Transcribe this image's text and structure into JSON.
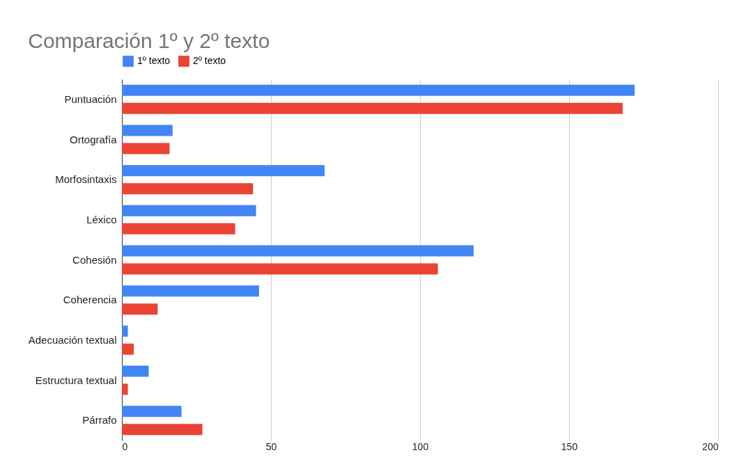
{
  "chart_data": {
    "type": "bar",
    "orientation": "horizontal",
    "title": "Comparación 1º y 2º texto",
    "categories": [
      "Puntuación",
      "Ortografía",
      "Morfosintaxis",
      "Léxico",
      "Cohesión",
      "Coherencia",
      "Adecuación textual",
      "Estructura textual",
      "Párrafo"
    ],
    "series": [
      {
        "name": "1º texto",
        "color": "#4285f4",
        "values": [
          172,
          17,
          68,
          45,
          118,
          46,
          2,
          9,
          20
        ]
      },
      {
        "name": "2º texto",
        "color": "#ea4335",
        "values": [
          168,
          16,
          44,
          38,
          106,
          12,
          4,
          2,
          27
        ]
      }
    ],
    "xlim": [
      0,
      200
    ],
    "xticks": [
      0,
      50,
      100,
      150,
      200
    ],
    "grid": "x",
    "legend": "top"
  }
}
